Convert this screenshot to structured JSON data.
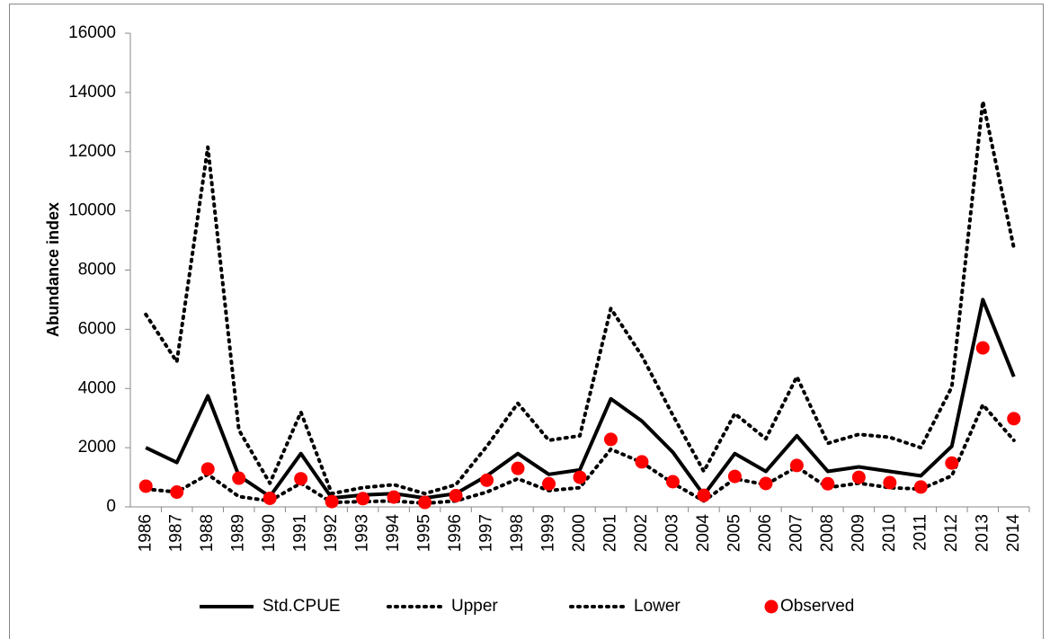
{
  "chart_data": {
    "type": "line",
    "y_label": "Abundance index",
    "categories": [
      "1986",
      "1987",
      "1988",
      "1989",
      "1990",
      "1991",
      "1992",
      "1993",
      "1994",
      "1995",
      "1996",
      "1997",
      "1998",
      "1999",
      "2000",
      "2001",
      "2002",
      "2003",
      "2004",
      "2005",
      "2006",
      "2007",
      "2008",
      "2009",
      "2010",
      "2011",
      "2012",
      "2013",
      "2014"
    ],
    "series": [
      {
        "name": "Std.CPUE",
        "color": "#000000",
        "style": "solid",
        "values": [
          2000,
          1500,
          3750,
          1050,
          350,
          1800,
          300,
          400,
          450,
          300,
          450,
          1050,
          1800,
          1100,
          1250,
          3650,
          2900,
          1850,
          400,
          1800,
          1200,
          2400,
          1200,
          1350,
          1200,
          1050,
          2050,
          7000,
          4400
        ]
      },
      {
        "name": "Upper",
        "color": "#000000",
        "style": "dotted",
        "values": [
          6500,
          4900,
          12150,
          2600,
          800,
          3200,
          450,
          650,
          750,
          450,
          750,
          2050,
          3500,
          2250,
          2400,
          6700,
          5100,
          3100,
          1200,
          3150,
          2300,
          4400,
          2150,
          2450,
          2350,
          2000,
          4050,
          13700,
          8750
        ]
      },
      {
        "name": "Lower",
        "color": "#000000",
        "style": "dotted",
        "values": [
          600,
          500,
          1100,
          350,
          200,
          800,
          150,
          180,
          200,
          120,
          200,
          500,
          950,
          550,
          650,
          1950,
          1500,
          800,
          200,
          950,
          750,
          1350,
          650,
          800,
          650,
          600,
          1050,
          3450,
          2250
        ]
      },
      {
        "name": "Observed",
        "color": "#ff0000",
        "style": "marker",
        "values": [
          700,
          500,
          1280,
          970,
          290,
          950,
          180,
          280,
          330,
          150,
          380,
          900,
          1300,
          780,
          1000,
          2280,
          1520,
          850,
          390,
          1030,
          790,
          1400,
          780,
          1000,
          820,
          670,
          1480,
          5370,
          2980
        ]
      }
    ],
    "ylim": [
      0,
      16000
    ],
    "yticks": [
      0,
      2000,
      4000,
      6000,
      8000,
      10000,
      12000,
      14000,
      16000
    ],
    "grid": false
  }
}
